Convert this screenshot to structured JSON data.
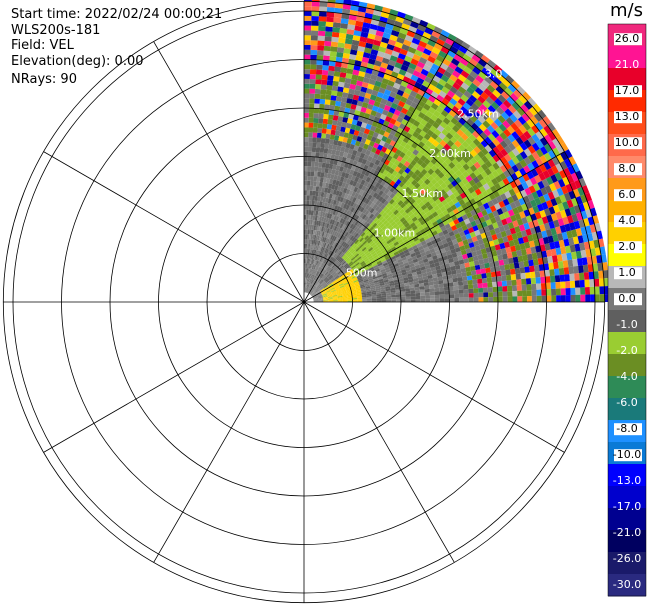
{
  "header": {
    "start_time": "Start time: 2022/02/24 00:00:21",
    "instrument": "WLS200s-181",
    "field": "Field: VEL",
    "elevation": "Elevation(deg): 0.00",
    "nrays": "NRays: 90"
  },
  "colorbar": {
    "units": "m/s",
    "ticks": [
      "26.0",
      "21.0",
      "17.0",
      "13.0",
      "10.0",
      "8.0",
      "6.0",
      "4.0",
      "2.0",
      "1.0",
      "0.0",
      "-1.0",
      "-2.0",
      "-4.0",
      "-6.0",
      "-8.0",
      "-10.0",
      "-13.0",
      "-17.0",
      "-21.0",
      "-26.0",
      "-30.0"
    ],
    "colors": [
      "#f0287d",
      "#ff1493",
      "#e8002a",
      "#ff2a00",
      "#ff4d1a",
      "#ff6a4a",
      "#ff8a6a",
      "#ff9a1a",
      "#ffb000",
      "#ffd000",
      "#ffff00",
      "#b8b8b8",
      "#787878",
      "#5f5f5f",
      "#9acd32",
      "#6b8e23",
      "#2e8b57",
      "#1a7a7a",
      "#1e90ff",
      "#0a7ad6",
      "#0000ff",
      "#0000cd",
      "#000090",
      "#000060",
      "#1a1a6a",
      "#2a2a80"
    ]
  },
  "chart_data": {
    "type": "heatmap",
    "plot": "PPI radial velocity",
    "field": "VEL",
    "units": "m/s",
    "elevation_deg": 0.0,
    "nrays": 90,
    "azimuth_coverage_deg": [
      0,
      90
    ],
    "ring_labels": [
      "500m",
      "1.00km",
      "1.50km",
      "2.00km",
      "2.50km",
      "3.0"
    ],
    "ring_ranges_km": [
      0.5,
      1.0,
      1.5,
      2.0,
      2.5,
      3.0
    ],
    "max_range_km": 3.1,
    "spokes_deg": [
      0,
      30,
      60,
      90,
      120,
      150,
      180,
      210,
      240,
      270,
      300,
      330
    ],
    "colorbar_ticks": [
      26.0,
      21.0,
      17.0,
      13.0,
      10.0,
      8.0,
      6.0,
      4.0,
      2.0,
      1.0,
      0.0,
      -1.0,
      -2.0,
      -4.0,
      -6.0,
      -8.0,
      -10.0,
      -13.0,
      -17.0,
      -21.0,
      -26.0,
      -30.0
    ],
    "regions": [
      {
        "description": "near range yellow (about +2 m/s)",
        "range_km": [
          0.2,
          0.55
        ],
        "az_deg": [
          55,
          90
        ],
        "value": 2.0
      },
      {
        "description": "gray zero velocity",
        "range_km": [
          0.0,
          1.5
        ],
        "az_deg": [
          0,
          90
        ],
        "value": 0.0
      },
      {
        "description": "light green (about -2 m/s)",
        "range_km": [
          0.55,
          1.6
        ],
        "az_deg": [
          40,
          62
        ],
        "value": -2.0
      },
      {
        "description": "olive/green band",
        "range_km": [
          1.5,
          2.5
        ],
        "az_deg": [
          30,
          60
        ],
        "value": -4.0
      },
      {
        "description": "noisy far range",
        "range_km": [
          2.4,
          3.1
        ],
        "az_deg": [
          0,
          90
        ],
        "value": null
      }
    ]
  }
}
